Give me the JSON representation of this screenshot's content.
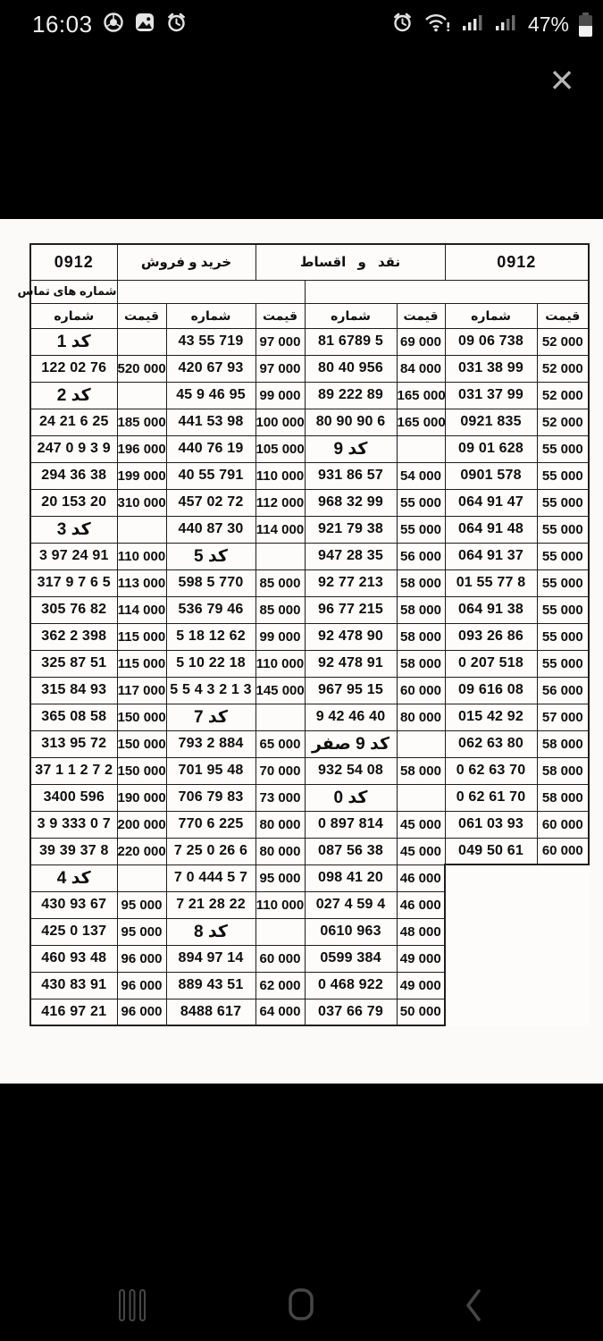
{
  "status_bar": {
    "time": "16:03",
    "battery": "47%",
    "left_icons": [
      "chrome-icon",
      "gallery-icon",
      "alarm-icon"
    ],
    "right_icons": [
      "alarm-icon",
      "wifi-icon",
      "signal-icon",
      "signal-icon",
      "battery-icon"
    ]
  },
  "viewer": {
    "close_glyph": "×"
  },
  "table": {
    "header_top": {
      "left_prefix": "0912",
      "buy_sell": "خرید و فروش",
      "cash_installments": "نقد و اقساط",
      "right_prefix": "0912"
    },
    "contact_label": "شماره های تماس",
    "col_headers": [
      "شماره",
      "قیمت",
      "شماره",
      "قیمت",
      "شماره",
      "قیمت",
      "شماره",
      "قیمت"
    ],
    "rows": [
      [
        "کد 1",
        "",
        "43 55 719",
        "97 000",
        "81 6789 5",
        "69 000",
        "09 06 738",
        "52 000"
      ],
      [
        "122 02 76",
        "520 000",
        "420 67 93",
        "97 000",
        "80 40 956",
        "84 000",
        "031 38 99",
        "52 000"
      ],
      [
        "کد 2",
        "",
        "45 9 46 95",
        "99 000",
        "89 222 89",
        "165 000",
        "031 37 99",
        "52 000"
      ],
      [
        "24 21 6 25",
        "185 000",
        "441 53 98",
        "100 000",
        "80 90 90 6",
        "165 000",
        "0921 835",
        "52 000"
      ],
      [
        "247 0 9 3 9",
        "196 000",
        "440 76 19",
        "105 000",
        "کد 9",
        "",
        "09 01 628",
        "55 000"
      ],
      [
        "294 36 38",
        "199 000",
        "40 55 791",
        "110 000",
        "931 86 57",
        "54 000",
        "0901 578",
        "55 000"
      ],
      [
        "20 153 20",
        "310 000",
        "457 02 72",
        "112 000",
        "968 32 99",
        "55 000",
        "064 91 47",
        "55 000"
      ],
      [
        "کد 3",
        "",
        "440 87 30",
        "114 000",
        "921 79 38",
        "55 000",
        "064 91 48",
        "55 000"
      ],
      [
        "3 97 24 91",
        "110 000",
        "کد 5",
        "",
        "947 28 35",
        "56 000",
        "064 91 37",
        "55 000"
      ],
      [
        "317 9 7 6 5",
        "113 000",
        "598 5 770",
        "85 000",
        "92 77 213",
        "58 000",
        "01 55 77 8",
        "55 000"
      ],
      [
        "305 76 82",
        "114 000",
        "536 79 46",
        "85 000",
        "96 77 215",
        "58 000",
        "064 91 38",
        "55 000"
      ],
      [
        "362 2 398",
        "115 000",
        "5 18 12 62",
        "99 000",
        "92 478 90",
        "58 000",
        "093 26 86",
        "55 000"
      ],
      [
        "325 87 51",
        "115 000",
        "5 10 22 18",
        "110 000",
        "92 478 91",
        "58 000",
        "0 207 518",
        "55 000"
      ],
      [
        "315 84 93",
        "117 000",
        "5 5 4 3 2 1 3",
        "145 000",
        "967 95 15",
        "60 000",
        "09 616 08",
        "56 000"
      ],
      [
        "365 08 58",
        "150 000",
        "کد 7",
        "",
        "9 42 46 40",
        "80 000",
        "015 42 92",
        "57 000"
      ],
      [
        "313 95 72",
        "150 000",
        "793 2 884",
        "65 000",
        "کد 9 صفر",
        "",
        "062 63 80",
        "58 000"
      ],
      [
        "37 1 1 2 7 2",
        "150 000",
        "701 95 48",
        "70 000",
        "932 54 08",
        "58 000",
        "0 62 63 70",
        "58 000"
      ],
      [
        "3400 596",
        "190 000",
        "706 79 83",
        "73 000",
        "کد 0",
        "",
        "0 62 61 70",
        "58 000"
      ],
      [
        "3 9 333 0 7",
        "200 000",
        "770 6 225",
        "80 000",
        "0 897 814",
        "45 000",
        "061 03 93",
        "60 000"
      ],
      [
        "39 39 37 8",
        "220 000",
        "7 25 0 26 6",
        "80 000",
        "087 56 38",
        "45 000",
        "049 50 61",
        "60 000"
      ],
      [
        "کد 4",
        "",
        "7 0 444 5 7",
        "95 000",
        "098 41 20",
        "46 000",
        null,
        null
      ],
      [
        "430 93 67",
        "95 000",
        "7 21 28 22",
        "110 000",
        "027 4 59 4",
        "46 000",
        null,
        null
      ],
      [
        "425 0 137",
        "95 000",
        "کد 8",
        "",
        "0610 963",
        "48 000",
        null,
        null
      ],
      [
        "460 93 48",
        "96 000",
        "894 97 14",
        "60 000",
        "0599 384",
        "49 000",
        null,
        null
      ],
      [
        "430 83 91",
        "96 000",
        "889 43 51",
        "62 000",
        "0 468 922",
        "49 000",
        null,
        null
      ],
      [
        "416 97 21",
        "96 000",
        "8488 617",
        "64 000",
        "037 66 79",
        "50 000",
        null,
        null
      ]
    ]
  },
  "nav_bar": {
    "icons": [
      "recents-icon",
      "home-icon",
      "back-icon"
    ]
  }
}
